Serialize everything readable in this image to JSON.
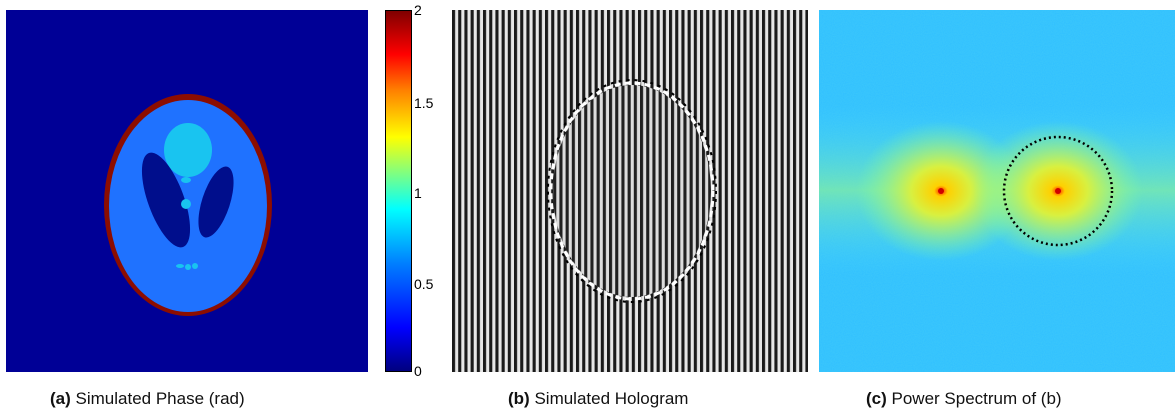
{
  "colors": {
    "deep_blue": "#000096",
    "mid_blue": "#1f72ff",
    "light_cyan": "#19c4f0",
    "dark_red": "#8c0d00",
    "hologram_dark": "#1a1a1a",
    "hologram_light": "#e6e6e6"
  },
  "colorbar": {
    "ticks": [
      "2",
      "1.5",
      "1",
      "0.5",
      "0"
    ],
    "range": [
      0,
      2
    ]
  },
  "captions": [
    {
      "tag": "(a)",
      "text": "Simulated Phase (rad)"
    },
    {
      "tag": "(b)",
      "text": "Simulated Hologram"
    },
    {
      "tag": "(c)",
      "text": "Power Spectrum of (b)"
    }
  ]
}
